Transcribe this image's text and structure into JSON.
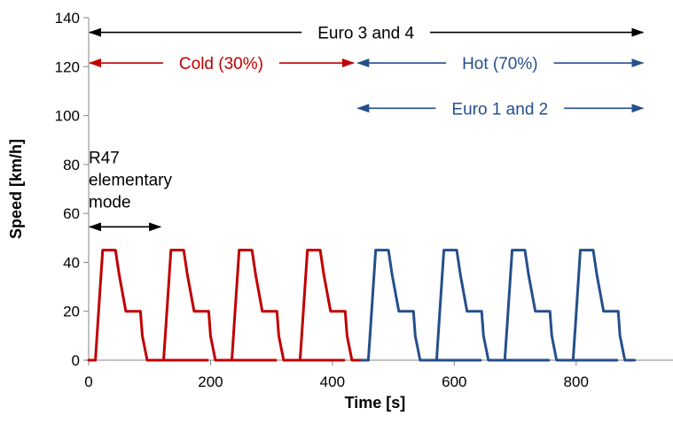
{
  "chart_data": {
    "type": "line",
    "xlabel": "Time [s]",
    "ylabel": "Speed [km/h]",
    "xlim": [
      0,
      959
    ],
    "ylim": [
      0,
      140
    ],
    "xticks": [
      0,
      200,
      400,
      600,
      800
    ],
    "yticks": [
      0,
      20,
      40,
      60,
      80,
      100,
      120,
      140
    ],
    "grid": false,
    "cycle_profile": {
      "t": [
        0,
        11,
        15,
        23,
        44,
        50,
        61,
        85,
        88,
        96,
        108,
        112,
        117,
        195
      ],
      "v": [
        0,
        0,
        15,
        45,
        45,
        35,
        20,
        20,
        10,
        0,
        0,
        0,
        0,
        0
      ]
    },
    "series": [
      {
        "color": "#C00000",
        "cycle_offsets": [
          0,
          112,
          224,
          336
        ],
        "end": 448
      },
      {
        "color": "#254F8C",
        "cycle_offsets": [
          448,
          560,
          672,
          784
        ],
        "end": 896
      }
    ],
    "annotations": [
      {
        "text": "Euro 3 and 4",
        "color": "#000000",
        "x_start": 0,
        "x_end": 910,
        "y": 134
      },
      {
        "text": "Cold (30%)",
        "color": "#C00000",
        "x_start": 0,
        "x_end": 435,
        "y": 121.5
      },
      {
        "text": "Hot (70%)",
        "color": "#254F8C",
        "x_start": 440,
        "x_end": 910,
        "y": 121.5
      },
      {
        "text": "Euro 1 and 2",
        "color": "#254F8C",
        "x_start": 440,
        "x_end": 910,
        "y": 103
      },
      {
        "text": "R47 elementary mode",
        "lines": [
          "R47",
          "elementary",
          "mode"
        ],
        "color": "#000000",
        "x_start": 0,
        "x_end": 118,
        "y": 54.5
      }
    ]
  }
}
